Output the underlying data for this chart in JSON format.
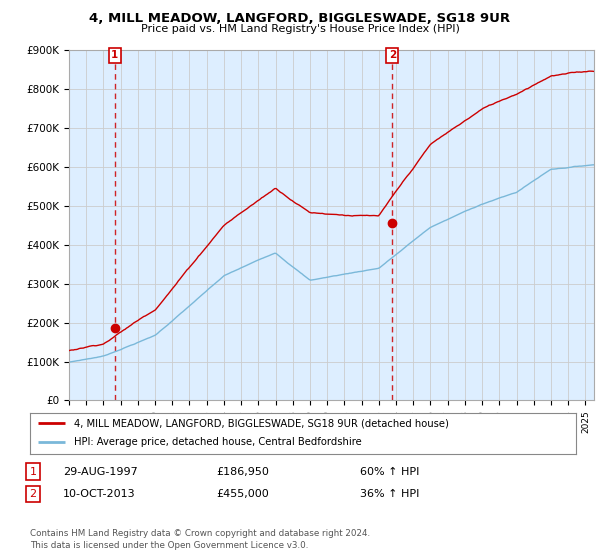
{
  "title": "4, MILL MEADOW, LANGFORD, BIGGLESWADE, SG18 9UR",
  "subtitle": "Price paid vs. HM Land Registry's House Price Index (HPI)",
  "ylim": [
    0,
    900000
  ],
  "yticks": [
    0,
    100000,
    200000,
    300000,
    400000,
    500000,
    600000,
    700000,
    800000,
    900000
  ],
  "ytick_labels": [
    "£0",
    "£100K",
    "£200K",
    "£300K",
    "£400K",
    "£500K",
    "£600K",
    "£700K",
    "£800K",
    "£900K"
  ],
  "hpi_color": "#7ab8d9",
  "price_color": "#cc0000",
  "chart_bg": "#ddeeff",
  "sale1_x": 1997.66,
  "sale1_price": 186950,
  "sale2_x": 2013.78,
  "sale2_price": 455000,
  "legend1": "4, MILL MEADOW, LANGFORD, BIGGLESWADE, SG18 9UR (detached house)",
  "legend2": "HPI: Average price, detached house, Central Bedfordshire",
  "footnote": "Contains HM Land Registry data © Crown copyright and database right 2024.\nThis data is licensed under the Open Government Licence v3.0.",
  "table_row1": [
    "1",
    "29-AUG-1997",
    "£186,950",
    "60% ↑ HPI"
  ],
  "table_row2": [
    "2",
    "10-OCT-2013",
    "£455,000",
    "36% ↑ HPI"
  ],
  "background_color": "#ffffff",
  "grid_color": "#cccccc"
}
